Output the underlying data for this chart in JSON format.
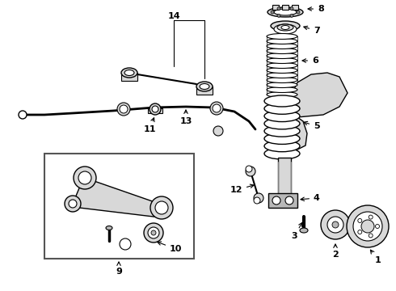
{
  "bg_color": "#ffffff",
  "fig_width": 4.9,
  "fig_height": 3.6,
  "dpi": 100,
  "outline_color": "#000000",
  "light_gray": "#d8d8d8",
  "mid_gray": "#b8b8b8",
  "dark_gray": "#888888"
}
